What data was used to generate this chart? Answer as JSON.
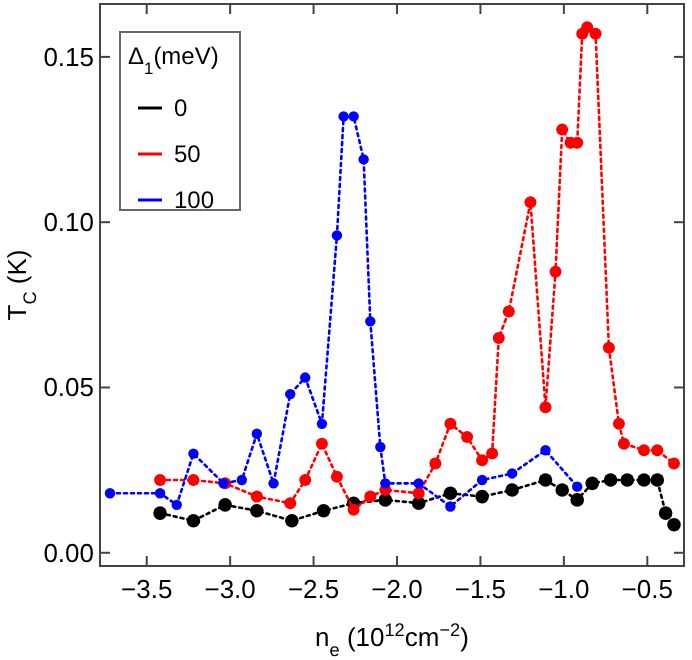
{
  "chart_data": {
    "type": "line",
    "xlabel": "n$_{e}$ (10$^{12}$cm$^{−2}$)",
    "ylabel": "T$_{C}$ (K)",
    "legend_title": "Δ$_{1}$(meV)",
    "legend": "top left",
    "marker": "circle",
    "line_style": "dotted",
    "grid": false,
    "xlim": [
      -3.78,
      -0.28
    ],
    "xticks": [
      {
        "value": -3.5,
        "label": "−3.5"
      },
      {
        "value": -3,
        "label": "−3.0"
      },
      {
        "value": -2.5,
        "label": "−2.5"
      },
      {
        "value": -2,
        "label": "−2.0"
      },
      {
        "value": -1.5,
        "label": "−1.5"
      },
      {
        "value": -1,
        "label": "−1.0"
      },
      {
        "value": -0.5,
        "label": "−0.5"
      }
    ],
    "ylim": [
      -0.004,
      0.166
    ],
    "yticks": [
      {
        "value": 0,
        "label": "0.00"
      },
      {
        "value": 0.05,
        "label": "0.05"
      },
      {
        "value": 0.1,
        "label": "0.10"
      },
      {
        "value": 0.15,
        "label": "0.15"
      }
    ],
    "series": [
      {
        "name": "0",
        "color": "#000000",
        "x": [
          -3.42,
          -3.22,
          -3.03,
          -2.84,
          -2.63,
          -2.44,
          -2.26,
          -2.07,
          -1.87,
          -1.68,
          -1.49,
          -1.31,
          -1.11,
          -1.01,
          -0.92,
          -0.83,
          -0.72,
          -0.62,
          -0.52,
          -0.44,
          -0.39,
          -0.34
        ],
        "values": [
          0.012,
          0.0097,
          0.0145,
          0.0127,
          0.0097,
          0.0127,
          0.015,
          0.016,
          0.015,
          0.018,
          0.017,
          0.019,
          0.022,
          0.019,
          0.016,
          0.021,
          0.022,
          0.022,
          0.022,
          0.022,
          0.012,
          0.0085
        ]
      },
      {
        "name": "50",
        "color": "#ff0000",
        "x": [
          -3.42,
          -3.22,
          -3.03,
          -2.84,
          -2.64,
          -2.55,
          -2.45,
          -2.36,
          -2.26,
          -2.16,
          -2.07,
          -1.87,
          -1.77,
          -1.68,
          -1.58,
          -1.49,
          -1.43,
          -1.39,
          -1.33,
          -1.2,
          -1.11,
          -1.05,
          -1.01,
          -0.96,
          -0.92,
          -0.89,
          -0.86,
          -0.81,
          -0.73,
          -0.67,
          -0.64,
          -0.52,
          -0.44,
          -0.34
        ],
        "values": [
          0.022,
          0.022,
          0.021,
          0.017,
          0.015,
          0.022,
          0.033,
          0.023,
          0.013,
          0.017,
          0.019,
          0.018,
          0.027,
          0.039,
          0.035,
          0.028,
          0.03,
          0.065,
          0.073,
          0.106,
          0.044,
          0.085,
          0.128,
          0.124,
          0.124,
          0.157,
          0.159,
          0.157,
          0.062,
          0.039,
          0.033,
          0.031,
          0.031,
          0.027
        ]
      },
      {
        "name": "100",
        "color": "#0000ff",
        "x": [
          -3.72,
          -3.42,
          -3.32,
          -3.22,
          -3.04,
          -2.93,
          -2.84,
          -2.74,
          -2.64,
          -2.55,
          -2.45,
          -2.36,
          -2.32,
          -2.26,
          -2.2,
          -2.16,
          -2.1,
          -2.07,
          -1.87,
          -1.68,
          -1.49,
          -1.31,
          -1.11,
          -0.92
        ],
        "values": [
          0.018,
          0.018,
          0.0145,
          0.03,
          0.021,
          0.022,
          0.036,
          0.021,
          0.048,
          0.053,
          0.039,
          0.096,
          0.132,
          0.132,
          0.119,
          0.07,
          0.032,
          0.021,
          0.021,
          0.014,
          0.022,
          0.024,
          0.031,
          0.02
        ]
      }
    ]
  }
}
